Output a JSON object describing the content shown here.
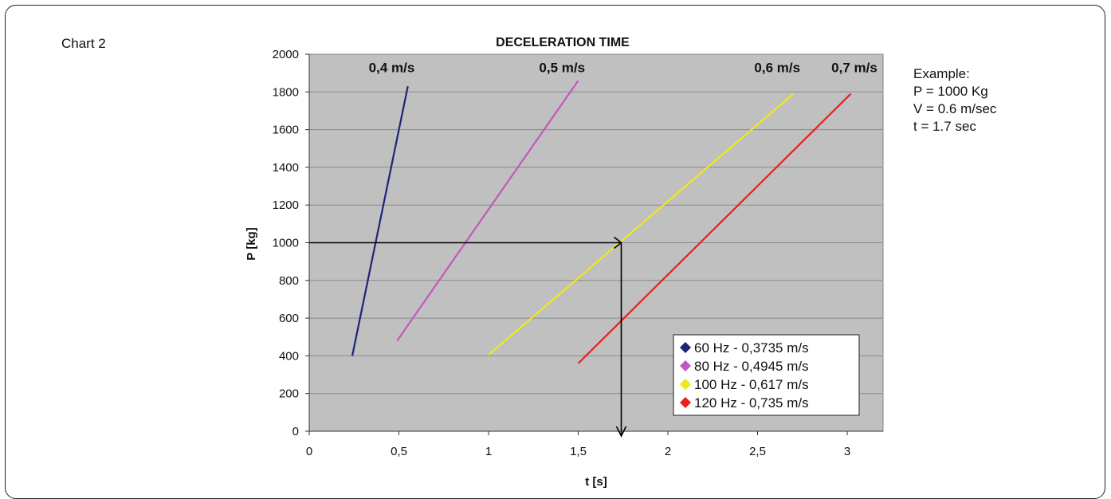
{
  "caption": "Chart 2",
  "example": {
    "heading": "Example:",
    "lines": [
      "P = 1000 Kg",
      "V = 0.6 m/sec",
      "t = 1.7 sec"
    ]
  },
  "chart_data": {
    "type": "line",
    "title": "DECELERATION TIME",
    "xlabel": "t [s]",
    "ylabel": "P [kg]",
    "xlim": [
      0,
      3.2
    ],
    "ylim": [
      0,
      2000
    ],
    "xticks": [
      0,
      0.5,
      1,
      1.5,
      2,
      2.5,
      3
    ],
    "xtick_labels": [
      "0",
      "0,5",
      "1",
      "1,5",
      "2",
      "2,5",
      "3"
    ],
    "yticks": [
      0,
      200,
      400,
      600,
      800,
      1000,
      1200,
      1400,
      1600,
      1800,
      2000
    ],
    "ytick_labels": [
      "0",
      "200",
      "400",
      "600",
      "800",
      "1000",
      "1200",
      "1400",
      "1600",
      "1800",
      "2000"
    ],
    "grid": "horizontal",
    "background": "#c0c0c0",
    "legend_position": "bottom-right",
    "series": [
      {
        "name": "60 Hz - 0,3735 m/s",
        "color": "#1f237a",
        "x": [
          0.24,
          0.55
        ],
        "y": [
          400,
          1830
        ],
        "label": "0,4 m/s",
        "label_at": [
          0.46,
          1930
        ]
      },
      {
        "name": "80 Hz - 0,4945 m/s",
        "color": "#c257c0",
        "x": [
          0.49,
          1.5
        ],
        "y": [
          480,
          1860
        ],
        "label": "0,5 m/s",
        "label_at": [
          1.41,
          1930
        ]
      },
      {
        "name": "100 Hz - 0,617 m/s",
        "color": "#ede81c",
        "x": [
          1.0,
          2.7
        ],
        "y": [
          405,
          1790
        ],
        "label": "0,6 m/s",
        "label_at": [
          2.61,
          1930
        ]
      },
      {
        "name": "120 Hz - 0,735 m/s",
        "color": "#e82020",
        "x": [
          1.5,
          3.02
        ],
        "y": [
          360,
          1790
        ],
        "label": "0,7 m/s",
        "label_at": [
          3.04,
          1930
        ]
      }
    ],
    "annotation": {
      "color": "#000000",
      "p": 1000,
      "t": 1.74
    }
  }
}
